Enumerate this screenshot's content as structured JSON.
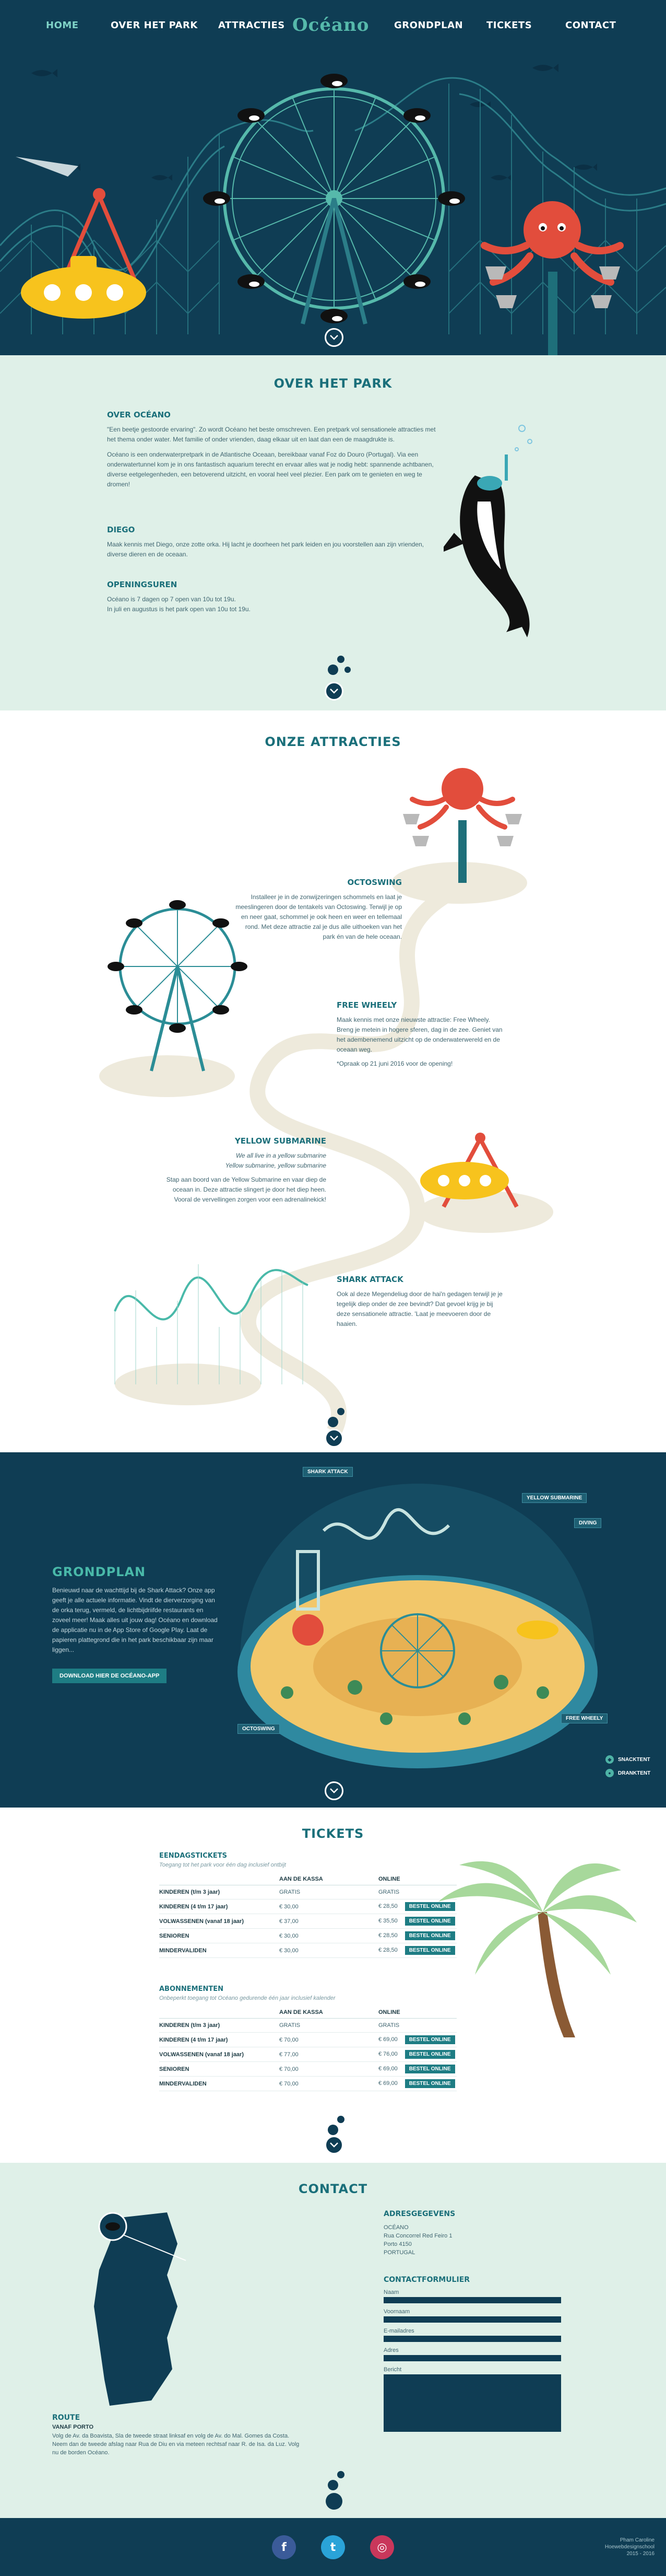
{
  "nav": {
    "items": [
      {
        "label": "HOME",
        "active": true
      },
      {
        "label": "OVER HET PARK"
      },
      {
        "label": "ATTRACTIES"
      },
      {
        "label": "GRONDPLAN"
      },
      {
        "label": "TICKETS"
      },
      {
        "label": "CONTACT"
      }
    ],
    "logo": "Océano"
  },
  "colors": {
    "navy": "#0f3d54",
    "teal": "#1e7d84",
    "mint_bg": "#dff0e8",
    "accent_teal": "#49b9a9",
    "octopus_red": "#e24d3c",
    "submarine_yellow": "#f7c31d"
  },
  "about": {
    "title": "OVER HET PARK",
    "sections": [
      {
        "heading": "OVER OCÉANO",
        "paragraphs": [
          "\"Een beetje gestoorde ervaring\". Zo wordt Océano het beste omschreven. Een pretpark vol sensationele attracties met het thema onder water. Met familie of onder vrienden, daag elkaar uit en laat dan een de maagdrukte is.",
          "Océano is een onderwaterpretpark in de Atlantische Oceaan, bereikbaar vanaf Foz do Douro (Portugal). Via een onderwatertunnel kom je in ons fantastisch aquarium terecht en ervaar alles wat je nodig hebt: spannende achtbanen, diverse eetgelegenheden, een betoverend uitzicht, en vooral heel veel plezier. Een park om te genieten en weg te dromen!"
        ]
      },
      {
        "heading": "DIEGO",
        "paragraphs": [
          "Maak kennis met Diego, onze zotte orka. Hij lacht je doorheen het park leiden en jou voorstellen aan zijn vrienden, diverse dieren en de oceaan."
        ]
      },
      {
        "heading": "OPENINGSUREN",
        "paragraphs": [
          "Océano is 7 dagen op 7 open van 10u tot 19u.",
          "In juli en augustus is het park open van 10u tot 19u."
        ]
      }
    ]
  },
  "attractions": {
    "title": "ONZE ATTRACTIES",
    "items": [
      {
        "name": "OCTOSWING",
        "text": "Installeer je in de zonwijzeringen schommels en laat je meeslingeren door de tentakels van Octoswing. Terwijl je op en neer gaat, schommel je ook heen en weer en tellemaal rond. Met deze attractie zal je dus alle uithoeken van het park én van de hele oceaan."
      },
      {
        "name": "FREE WHEELY",
        "text": "Maak kennis met onze nieuwste attractie: Free Wheely. Breng je metein in hogere sferen, dag in de zee. Geniet van het adembenemend uitzicht op de onderwaterwereld en de oceaan weg.",
        "note": "*Opraak op 21 juni 2016 voor de opening!"
      },
      {
        "name": "YELLOW SUBMARINE",
        "quote_1": "We all live in a yellow submarine",
        "quote_2": "Yellow submarine, yellow submarine",
        "text": "Stap aan boord van de Yellow Submarine en vaar diep de oceaan in. Deze attractie slingert je door het diep heen. Vooral de vervellingen zorgen voor een adrenalinekick!"
      },
      {
        "name": "SHARK ATTACK",
        "text": "Ook al deze Megendeliug door de hai'n gedagen terwijl je je tegelijk diep onder de zee bevindt? Dat gevoel krijg je bij deze sensationele attractie. 'Laat je meevoeren door de haaien."
      }
    ]
  },
  "map": {
    "title": "GRONDPLAN",
    "text": "Benieuwd naar de wachttijd bij de Shark Attack? Onze app geeft je alle actuele informatie. Vindt de dierverzorging van de orka terug, vermeld, de lichtbijdriifde restaurants en zoveel meer! Maak alles uit jouw dag! Océano en download de applicatie nu in de App Store of Google Play. Laat de papieren plattegrond die in het park beschikbaar zijn maar liggen...",
    "button": "DOWNLOAD HIER DE OCÉANO-APP",
    "tags": {
      "shark": "SHARK ATTACK",
      "submarine": "YELLOW SUBMARINE",
      "diving": "DIVING",
      "wheel": "FREE WHEELY",
      "octo": "OCTOSWING"
    },
    "legend": [
      {
        "icon": "snack-icon",
        "label": "SNACKTENT"
      },
      {
        "icon": "dranktent-icon",
        "label": "DRANKTENT"
      }
    ]
  },
  "tickets": {
    "title": "TICKETS",
    "day": {
      "heading": "EENDAGSTICKETS",
      "caption": "Toegang tot het park voor één dag inclusief ontbijt",
      "col_1": "AAN DE KASSA",
      "col_2": "ONLINE",
      "rows": [
        {
          "cat": "KINDEREN (t/m 3 jaar)",
          "kassa": "GRATIS",
          "online": "GRATIS",
          "buy": ""
        },
        {
          "cat": "KINDEREN (4 t/m 17 jaar)",
          "kassa": "€ 30,00",
          "online": "€ 28,50",
          "buy": "BESTEL ONLINE"
        },
        {
          "cat": "VOLWASSENEN (vanaf 18 jaar)",
          "kassa": "€ 37,00",
          "online": "€ 35,50",
          "buy": "BESTEL ONLINE"
        },
        {
          "cat": "SENIOREN",
          "kassa": "€ 30,00",
          "online": "€ 28,50",
          "buy": "BESTEL ONLINE"
        },
        {
          "cat": "MINDERVALIDEN",
          "kassa": "€ 30,00",
          "online": "€ 28,50",
          "buy": "BESTEL ONLINE"
        }
      ]
    },
    "sub": {
      "heading": "ABONNEMENTEN",
      "caption": "Onbeperkt toegang tot Océano gedurende één jaar inclusief kalender",
      "col_1": "AAN DE KASSA",
      "col_2": "ONLINE",
      "rows": [
        {
          "cat": "KINDEREN (t/m 3 jaar)",
          "kassa": "GRATIS",
          "online": "GRATIS",
          "buy": ""
        },
        {
          "cat": "KINDEREN (4 t/m 17 jaar)",
          "kassa": "€ 70,00",
          "online": "€ 69,00",
          "buy": "BESTEL ONLINE"
        },
        {
          "cat": "VOLWASSENEN (vanaf 18 jaar)",
          "kassa": "€ 77,00",
          "online": "€ 76,00",
          "buy": "BESTEL ONLINE"
        },
        {
          "cat": "SENIOREN",
          "kassa": "€ 70,00",
          "online": "€ 69,00",
          "buy": "BESTEL ONLINE"
        },
        {
          "cat": "MINDERVALIDEN",
          "kassa": "€ 70,00",
          "online": "€ 69,00",
          "buy": "BESTEL ONLINE"
        }
      ]
    }
  },
  "contact": {
    "title": "CONTACT",
    "address_heading": "ADRESGEGEVENS",
    "address": [
      "OCÉANO",
      "Rua Concorrel Red Feiro 1",
      "Porto 4150",
      "PORTUGAL"
    ],
    "form_heading": "CONTACTFORMULIER",
    "fields": [
      "Naam",
      "Voornaam",
      "E-mailadres",
      "Adres"
    ],
    "message_label": "Bericht",
    "route_heading": "ROUTE",
    "route_label": "VANAF PORTO",
    "route_text": "Volg de Av. da Boavista, Sla de tweede straat linksaf en volg de Av. do Mal. Gomes da Costa. Neem dan de tweede afslag naar Rua de Diu en via meteen rechtsaf naar R. de Isa. da Luz. Volg nu de borden Océano."
  },
  "footer": {
    "social": [
      {
        "name": "facebook-icon",
        "glyph": "f",
        "color": "#3b5b99"
      },
      {
        "name": "twitter-icon",
        "glyph": "t",
        "color": "#2aa3d8"
      },
      {
        "name": "instagram-icon",
        "glyph": "◎",
        "color": "#c9375b"
      }
    ],
    "credits": [
      "Pham Caroline",
      "Hoewebdesignschool",
      "2015 - 2016"
    ]
  }
}
